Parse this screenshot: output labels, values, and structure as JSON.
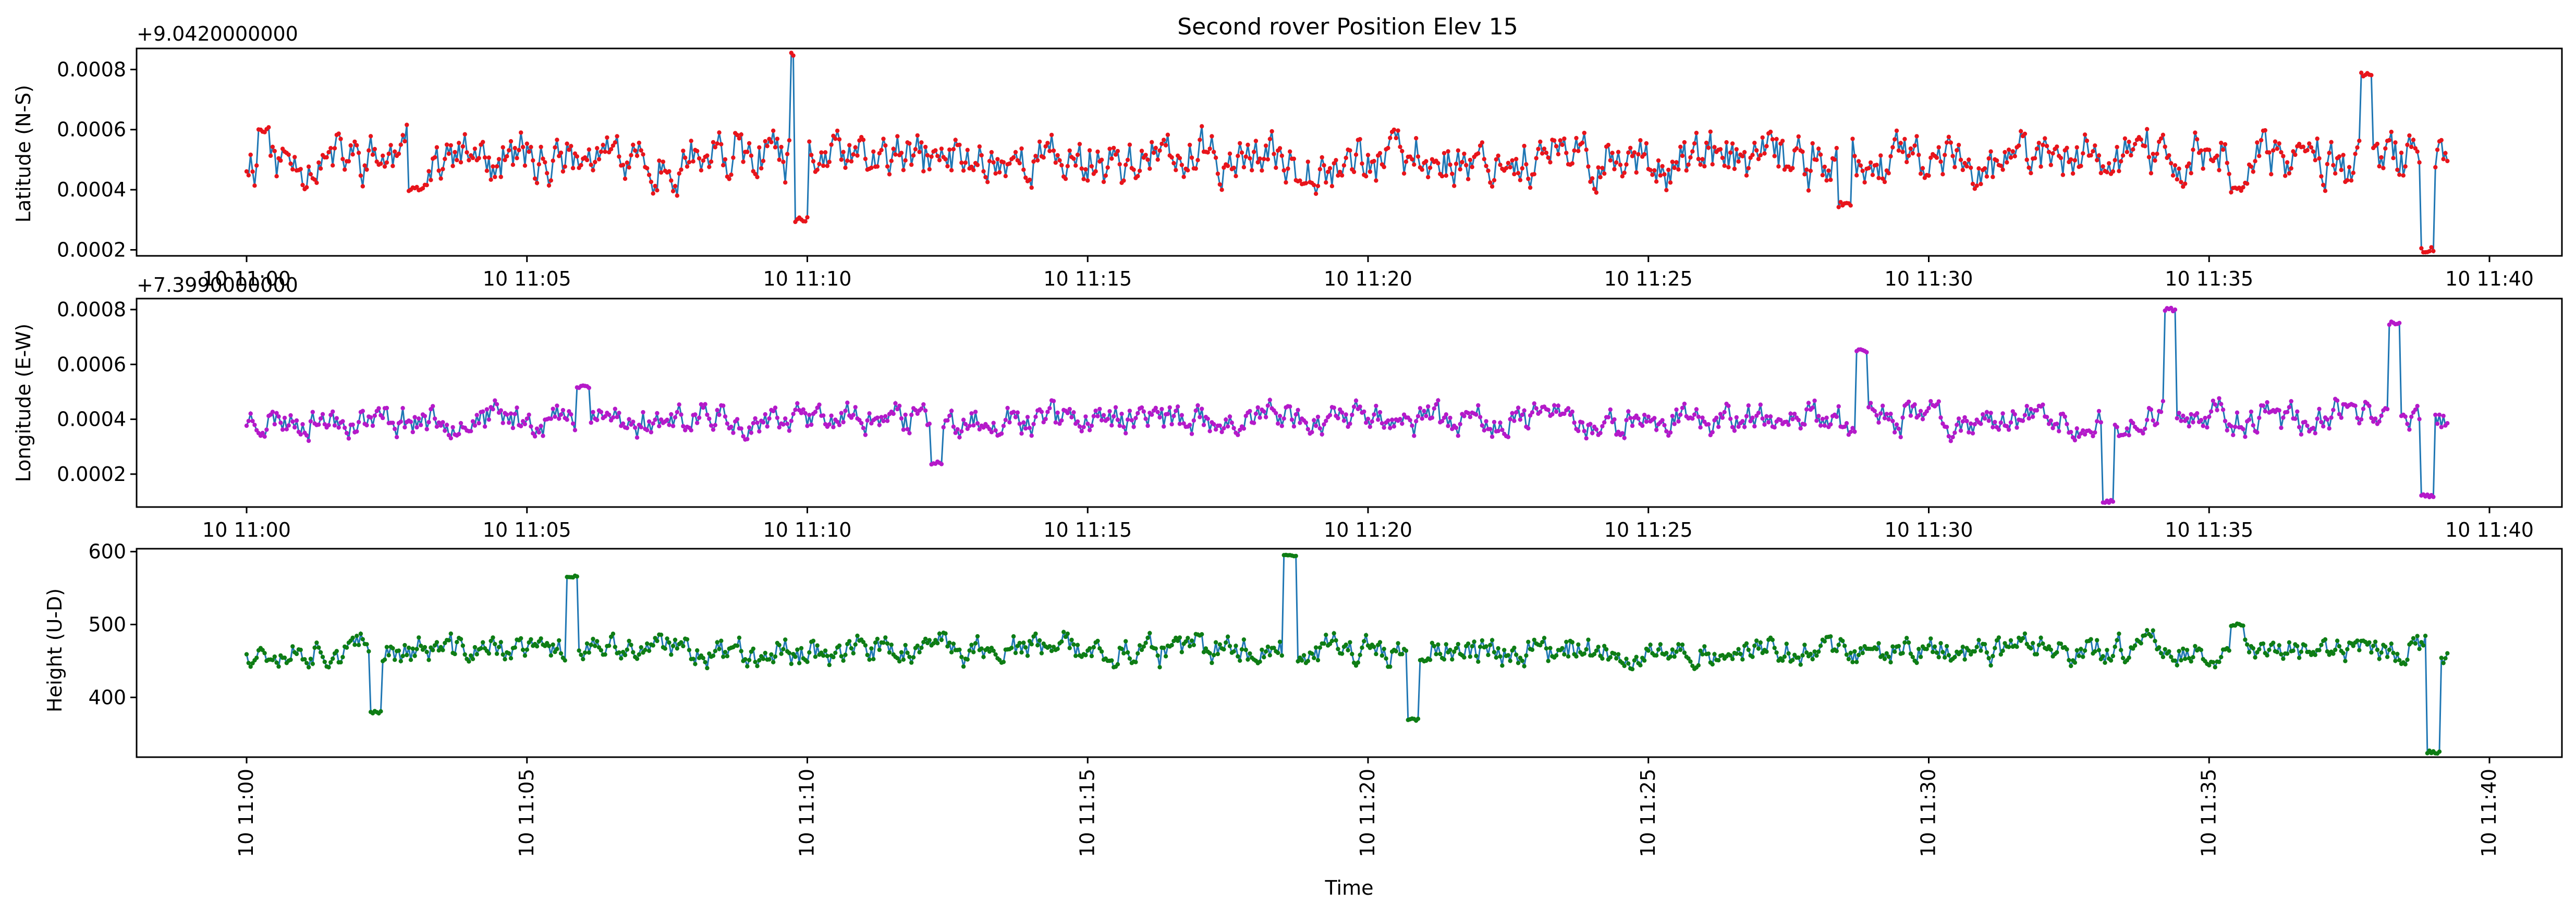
{
  "figure": {
    "title": "Second rover Position Elev 15"
  },
  "chart_data": [
    {
      "type": "line",
      "ylabel": "Latitude (N-S)",
      "offset_text": "+9.0420000000",
      "x_range": [
        "10 11:00",
        "10 11:39"
      ],
      "ylim": [
        0.00018,
        0.00087
      ],
      "yticks": [
        0.0002,
        0.0004,
        0.0006,
        0.0008
      ],
      "ytick_labels": [
        "0.0002",
        "0.0004",
        "0.0006",
        "0.0008"
      ],
      "xticks": [
        "10 11:00",
        "10 11:05",
        "10 11:10",
        "10 11:15",
        "10 11:20",
        "10 11:25",
        "10 11:30",
        "10 11:35",
        "10 11:40"
      ],
      "line_color": "#1f77b4",
      "marker_color": "#e8141b",
      "series": [
        {
          "mean": 0.0005,
          "noise": 6e-05,
          "seed": 11,
          "features": [
            [
              0.3,
              0.0006
            ],
            [
              3.0,
              0.0004
            ],
            [
              9.8,
              0.00085
            ],
            [
              9.9,
              0.0003
            ],
            [
              28.5,
              0.00035
            ],
            [
              35.5,
              0.0004
            ],
            [
              37.8,
              0.00078
            ],
            [
              38.9,
              0.0002
            ]
          ]
        }
      ]
    },
    {
      "type": "line",
      "ylabel": "Longitude (E-W)",
      "offset_text": "+7.3990000000",
      "x_range": [
        "10 11:00",
        "10 11:39"
      ],
      "ylim": [
        8e-05,
        0.00084
      ],
      "yticks": [
        0.0002,
        0.0004,
        0.0006,
        0.0008
      ],
      "ytick_labels": [
        "0.0002",
        "0.0004",
        "0.0006",
        "0.0008"
      ],
      "xticks": [
        "10 11:00",
        "10 11:05",
        "10 11:10",
        "10 11:15",
        "10 11:20",
        "10 11:25",
        "10 11:30",
        "10 11:35",
        "10 11:40"
      ],
      "line_color": "#1f77b4",
      "marker_color": "#b519c9",
      "series": [
        {
          "mean": 0.0004,
          "noise": 4e-05,
          "seed": 23,
          "features": [
            [
              6.0,
              0.00052
            ],
            [
              12.3,
              0.00024
            ],
            [
              28.8,
              0.00065
            ],
            [
              33.2,
              0.0001
            ],
            [
              34.3,
              0.0008
            ],
            [
              37.5,
              0.00045
            ],
            [
              38.3,
              0.00075
            ],
            [
              38.9,
              0.00012
            ]
          ]
        }
      ]
    },
    {
      "type": "line",
      "ylabel": "Height (U-D)",
      "xlabel": "Time",
      "x_range": [
        "10 11:00",
        "10 11:39"
      ],
      "ylim": [
        318,
        604
      ],
      "yticks": [
        400,
        500,
        600
      ],
      "ytick_labels": [
        "400",
        "500",
        "600"
      ],
      "xticks": [
        "10 11:00",
        "10 11:05",
        "10 11:10",
        "10 11:15",
        "10 11:20",
        "10 11:25",
        "10 11:30",
        "10 11:35",
        "10 11:40"
      ],
      "line_color": "#1f77b4",
      "marker_color": "#0e7d14",
      "series": [
        {
          "mean": 465,
          "noise": 14,
          "seed": 37,
          "features": [
            [
              2.3,
              380
            ],
            [
              5.8,
              565
            ],
            [
              18.6,
              595
            ],
            [
              20.8,
              370
            ],
            [
              35.5,
              500
            ],
            [
              39.0,
              325
            ]
          ]
        }
      ]
    }
  ]
}
